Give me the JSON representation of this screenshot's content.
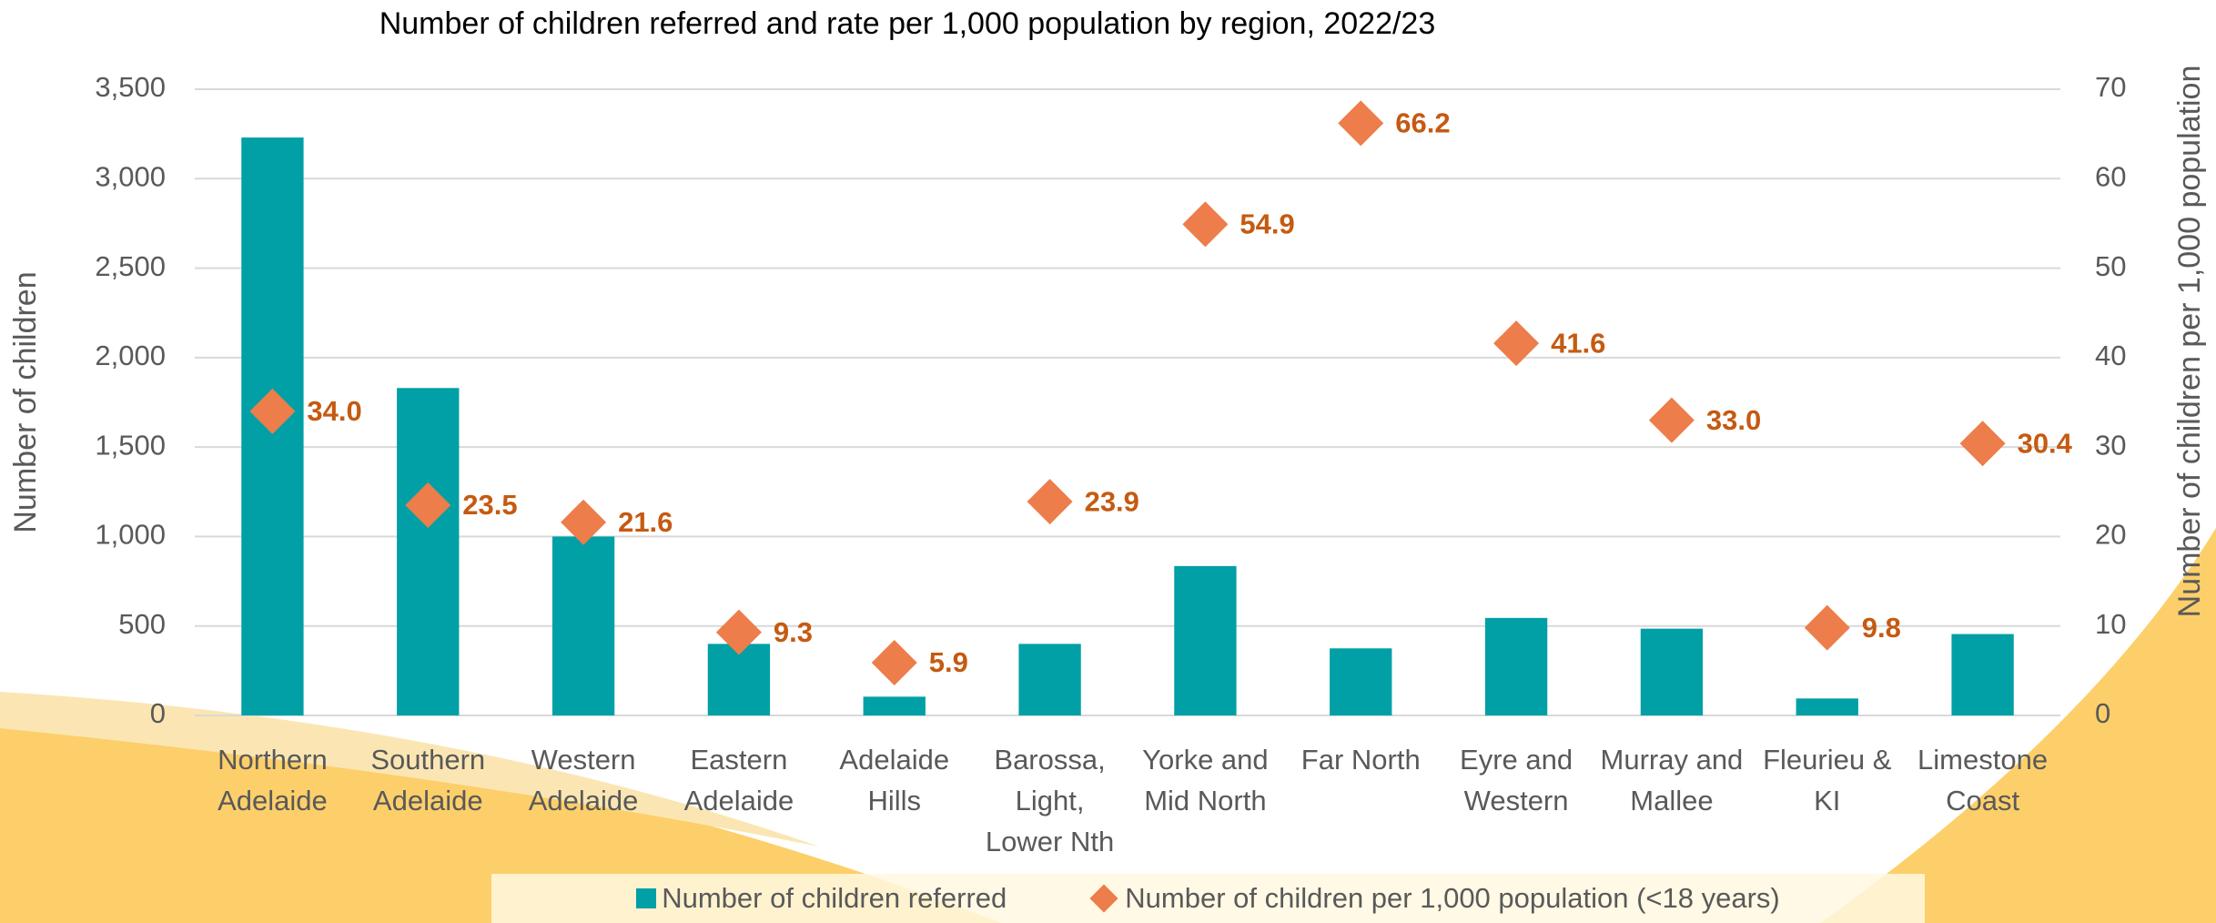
{
  "chart_data": {
    "type": "bar-line",
    "title": "Number of children referred and rate per 1,000 population by region, 2022/23",
    "ylabel": "Number of children",
    "y2label": "Number of children per 1,000 population",
    "categories": [
      "Northern Adelaide",
      "Southern Adelaide",
      "Western Adelaide",
      "Eastern Adelaide",
      "Adelaide Hills",
      "Barossa, Light, Lower Nth",
      "Yorke and Mid North",
      "Far North",
      "Eyre and Western",
      "Murray and Mallee",
      "Fleurieu & KI",
      "Limestone Coast"
    ],
    "series": [
      {
        "name": "Number of children referred",
        "type": "bar",
        "color": "#00a0a6",
        "values": [
          3230,
          1830,
          1000,
          400,
          105,
          400,
          835,
          375,
          545,
          485,
          95,
          455
        ]
      },
      {
        "name": "Number of children per 1,000 population (<18 years)",
        "type": "scatter",
        "marker": "diamond",
        "axis": "y2",
        "color": "#ed7d4a",
        "label_color": "#c55a11",
        "values": [
          34.0,
          23.5,
          21.6,
          9.3,
          5.9,
          23.9,
          54.9,
          66.2,
          41.6,
          33.0,
          9.8,
          30.4
        ],
        "value_labels": [
          "34.0",
          "23.5",
          "21.6",
          "9.3",
          "5.9",
          "23.9",
          "54.9",
          "66.2",
          "41.6",
          "33.0",
          "9.8",
          "30.4"
        ]
      }
    ],
    "ylim": [
      0,
      3500
    ],
    "yticks": [
      0,
      500,
      {
        "value": 1000,
        "label": "1,000"
      },
      {
        "value": 1500,
        "label": "1,500"
      },
      {
        "value": 2000,
        "label": "2,000"
      },
      {
        "value": 2500,
        "label": "2,500"
      },
      {
        "value": 3000,
        "label": "3,000"
      },
      {
        "value": 3500,
        "label": "3,500"
      }
    ],
    "y2lim": [
      0,
      70
    ],
    "y2ticks": [
      0,
      10,
      20,
      30,
      40,
      50,
      60,
      70
    ],
    "grid": true,
    "legend": "bottom"
  }
}
